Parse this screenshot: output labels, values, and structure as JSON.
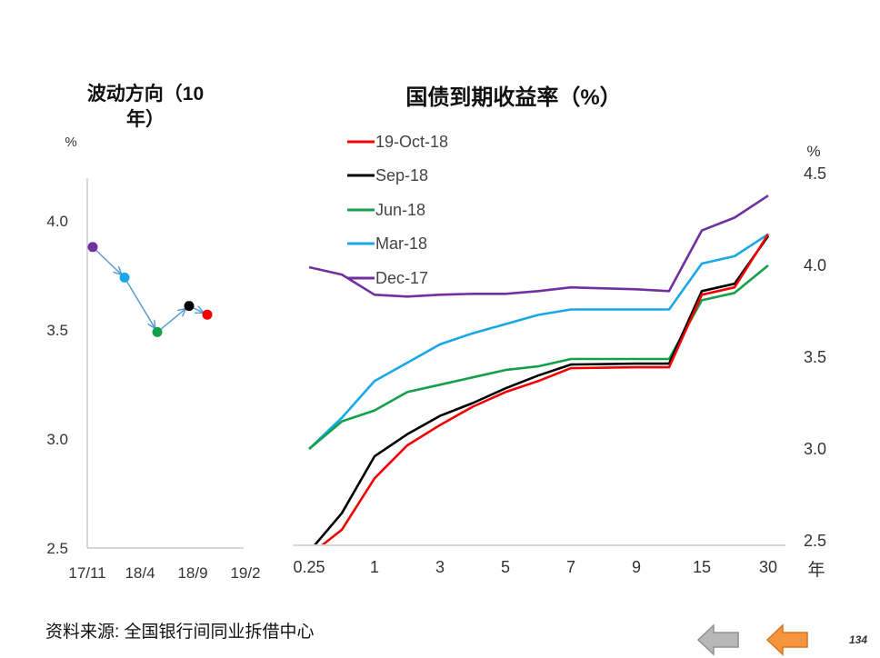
{
  "left_panel": {
    "title_line1": "波动方向（10",
    "title_line2": "年）"
  },
  "right_panel": {
    "title": "国债到期收益率（%）"
  },
  "source": "资料来源: 全国银行间同业拆借中心",
  "page_number": "134",
  "colors": {
    "red": "#f20000",
    "black": "#000000",
    "green": "#12a04a",
    "blue": "#18a8e8",
    "purple": "#7030a0",
    "arrow": "#5b9bd5",
    "axis": "#b0b0b0"
  },
  "chart_data": [
    {
      "type": "scatter",
      "name": "direction",
      "ylabel": "%",
      "ylim": [
        2.5,
        4.1
      ],
      "y_ticks": [
        "2.5",
        "3.0",
        "3.5",
        "4.0"
      ],
      "x_ticks": [
        "17/11",
        "18/4",
        "18/9",
        "19/2"
      ],
      "points": [
        {
          "y": 3.88,
          "color": "#7030a0"
        },
        {
          "y": 3.74,
          "color": "#18a8e8"
        },
        {
          "y": 3.49,
          "color": "#12a04a"
        },
        {
          "y": 3.61,
          "color": "#000000"
        },
        {
          "y": 3.57,
          "color": "#f20000"
        }
      ]
    },
    {
      "type": "line",
      "name": "yield_curve",
      "ylabel": "%",
      "xlabel": "年",
      "ylim": [
        2.5,
        4.5
      ],
      "y_ticks": [
        "2.5",
        "3.0",
        "3.5",
        "4.0",
        "4.5"
      ],
      "x_ticks": [
        "0.25",
        "1",
        "3",
        "5",
        "7",
        "9",
        "15",
        "30"
      ],
      "legend_position": "top-left",
      "series": [
        {
          "name": "19-Oct-18",
          "color": "#f20000",
          "values": [
            2.42,
            2.56,
            2.84,
            3.02,
            3.13,
            3.23,
            3.31,
            3.37,
            3.44,
            3.445,
            3.445,
            3.84,
            3.88,
            4.17
          ]
        },
        {
          "name": "Sep-18",
          "color": "#000000",
          "values": [
            2.44,
            2.65,
            2.96,
            3.08,
            3.18,
            3.25,
            3.33,
            3.4,
            3.46,
            3.465,
            3.465,
            3.86,
            3.9,
            4.16
          ]
        },
        {
          "name": "Jun-18",
          "color": "#12a04a",
          "values": [
            3.0,
            3.15,
            3.21,
            3.31,
            3.35,
            3.39,
            3.43,
            3.45,
            3.49,
            3.49,
            3.49,
            3.81,
            3.85,
            4.0
          ]
        },
        {
          "name": "Mar-18",
          "color": "#18a8e8",
          "values": [
            3.0,
            3.17,
            3.37,
            3.47,
            3.57,
            3.63,
            3.68,
            3.73,
            3.76,
            3.76,
            3.76,
            4.01,
            4.05,
            4.17
          ]
        },
        {
          "name": "Dec-17",
          "color": "#7030a0",
          "values": [
            3.99,
            3.95,
            3.84,
            3.83,
            3.84,
            3.845,
            3.845,
            3.86,
            3.88,
            3.87,
            3.86,
            4.19,
            4.26,
            4.38
          ]
        }
      ]
    }
  ]
}
